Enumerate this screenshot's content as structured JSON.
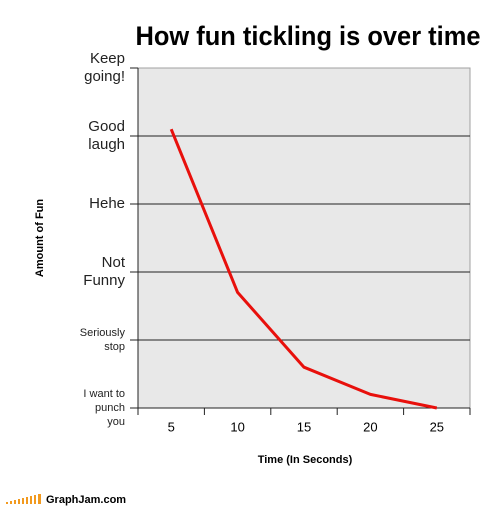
{
  "chart_data": {
    "type": "line",
    "title": "How fun tickling is over time",
    "x_label": "Time (In Seconds)",
    "y_label": "Amount of Fun",
    "categories": [
      "5",
      "10",
      "15",
      "20",
      "25"
    ],
    "values": [
      4.1,
      1.7,
      0.6,
      0.2,
      0
    ],
    "color": "#e8100c",
    "ylim": [
      0,
      5
    ],
    "yticks": [
      {
        "value": 0,
        "label": "I want to\npunch\nyou"
      },
      {
        "value": 1,
        "label": "Seriously\nstop"
      },
      {
        "value": 2,
        "label": "Not\nFunny"
      },
      {
        "value": 3,
        "label": "Hehe"
      },
      {
        "value": 4,
        "label": "Good\nlaugh"
      },
      {
        "value": 5,
        "label": "Keep\ngoing!"
      }
    ],
    "grid": true
  },
  "footer": "GraphJam.com"
}
